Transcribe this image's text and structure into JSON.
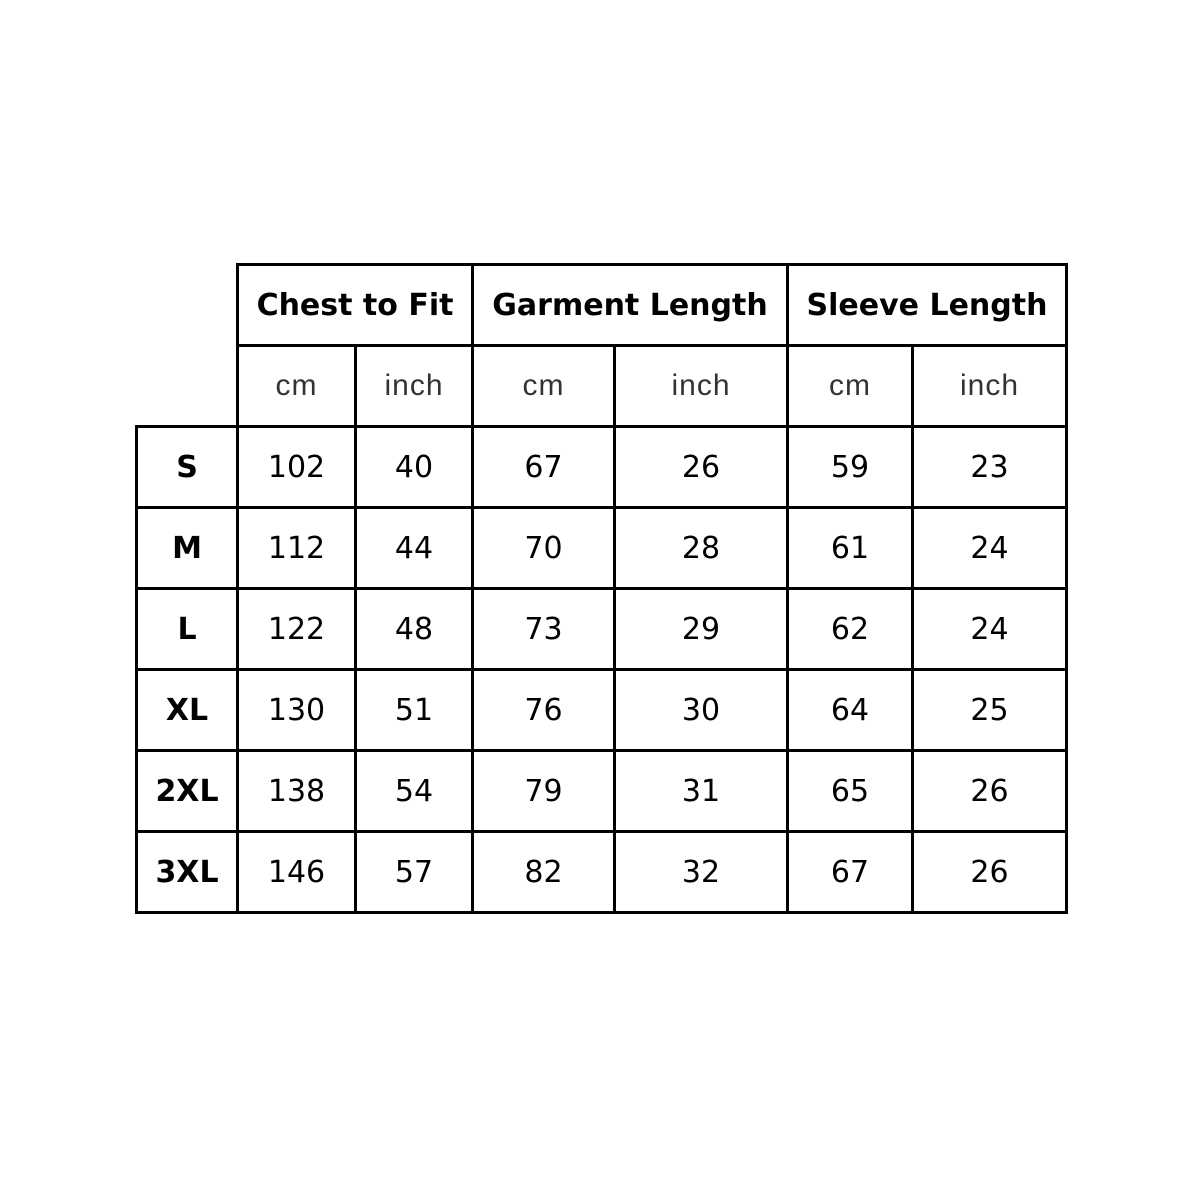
{
  "headers": {
    "chest": "Chest to Fit",
    "garment": "Garment Length",
    "sleeve": "Sleeve Length"
  },
  "units": [
    "cm",
    "inch",
    "cm",
    "inch",
    "cm",
    "inch"
  ],
  "rows": [
    {
      "size": "S",
      "values": [
        "102",
        "40",
        "67",
        "26",
        "59",
        "23"
      ]
    },
    {
      "size": "M",
      "values": [
        "112",
        "44",
        "70",
        "28",
        "61",
        "24"
      ]
    },
    {
      "size": "L",
      "values": [
        "122",
        "48",
        "73",
        "29",
        "62",
        "24"
      ]
    },
    {
      "size": "XL",
      "values": [
        "130",
        "51",
        "76",
        "30",
        "64",
        "25"
      ]
    },
    {
      "size": "2XL",
      "values": [
        "138",
        "54",
        "79",
        "31",
        "65",
        "26"
      ]
    },
    {
      "size": "3XL",
      "values": [
        "146",
        "57",
        "82",
        "32",
        "67",
        "26"
      ]
    }
  ]
}
